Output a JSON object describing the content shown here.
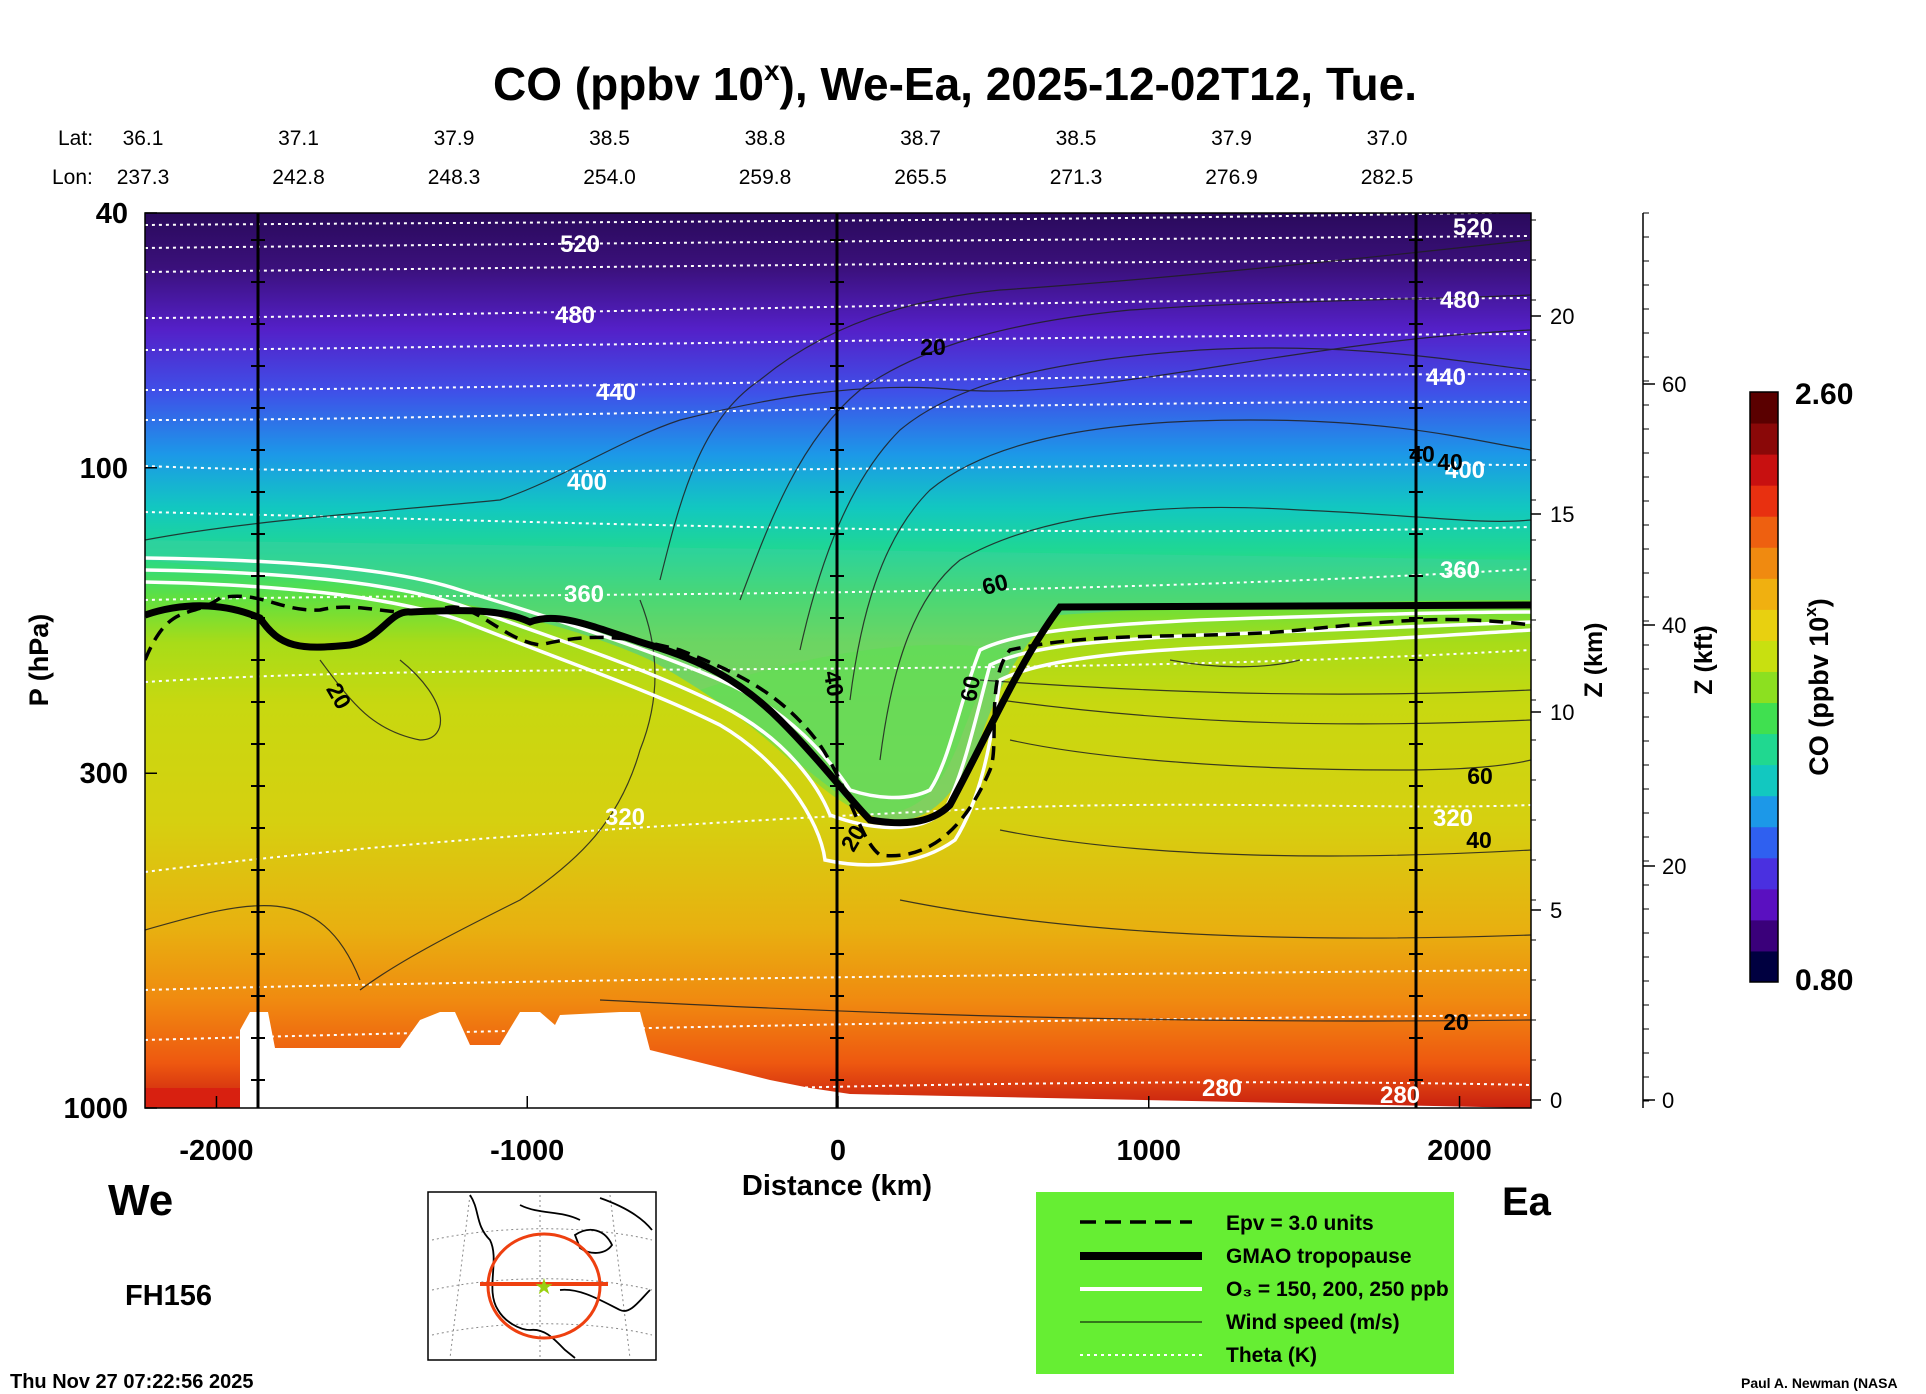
{
  "chart_data": {
    "type": "heatmap",
    "title": "CO (ppbv 10",
    "title_superscript": "x",
    "title_suffix": "), We-Ea, 2025-12-02T12, Tue.",
    "lat_label": "Lat:",
    "lon_label": "Lon:",
    "lat_values": [
      "36.1",
      "37.1",
      "37.9",
      "38.5",
      "38.8",
      "38.7",
      "38.5",
      "37.9",
      "37.0"
    ],
    "lon_values": [
      "237.3",
      "242.8",
      "248.3",
      "254.0",
      "259.8",
      "265.5",
      "271.3",
      "276.9",
      "282.5"
    ],
    "xlabel": "Distance (km)",
    "xlim": [
      -2230,
      2230
    ],
    "x_ticks": [
      -2000,
      -1000,
      0,
      1000,
      2000
    ],
    "x_tick_labels": [
      "-2000",
      "-1000",
      "0",
      "1000",
      "2000"
    ],
    "ylabel": "P (hPa)",
    "ylim": [
      1000,
      40
    ],
    "y_ticks": [
      40,
      100,
      300,
      1000
    ],
    "y_tick_labels": [
      "40",
      "100",
      "300",
      "1000"
    ],
    "z_km_label": "Z (km)",
    "z_km_ticks": [
      "0",
      "5",
      "10",
      "15",
      "20"
    ],
    "z_kft_label": "Z (kft)",
    "z_kft_ticks": [
      "0",
      "20",
      "40",
      "60"
    ],
    "west_label": "We",
    "east_label": "Ea",
    "colorbar": {
      "label": "CO (ppbv 10",
      "label_superscript": "x",
      "label_suffix": ")",
      "min_label": "0.80",
      "max_label": "2.60",
      "colors": [
        "#000040",
        "#3a007a",
        "#5a10c0",
        "#4a30e0",
        "#2f60f0",
        "#1c98e8",
        "#12c8c0",
        "#20d890",
        "#40e050",
        "#8ce020",
        "#c8e010",
        "#e8d010",
        "#f0b010",
        "#f08a10",
        "#ee6010",
        "#e83010",
        "#c81010",
        "#8a0808",
        "#5a0000"
      ]
    },
    "theta_labels": [
      "520",
      "480",
      "440",
      "400",
      "360",
      "320",
      "280",
      "520",
      "480",
      "440",
      "400",
      "360",
      "320",
      "280"
    ],
    "wind_labels": [
      "20",
      "20",
      "60",
      "40",
      "60",
      "40",
      "20",
      "60",
      "40",
      "20",
      "40"
    ],
    "legend": {
      "position": "bottom-right",
      "entries": [
        "Epv = 3.0 units",
        "GMAO tropopause",
        "O₃ = 150, 200, 250 ppb",
        "Wind speed (m/s)",
        "Theta (K)"
      ]
    },
    "map_inset": "North America map with cross-section line",
    "forecast_hour": "FH156",
    "timestamp": "Thu Nov 27 07:22:56 2025",
    "credit": "Paul A. Newman (NASA"
  }
}
